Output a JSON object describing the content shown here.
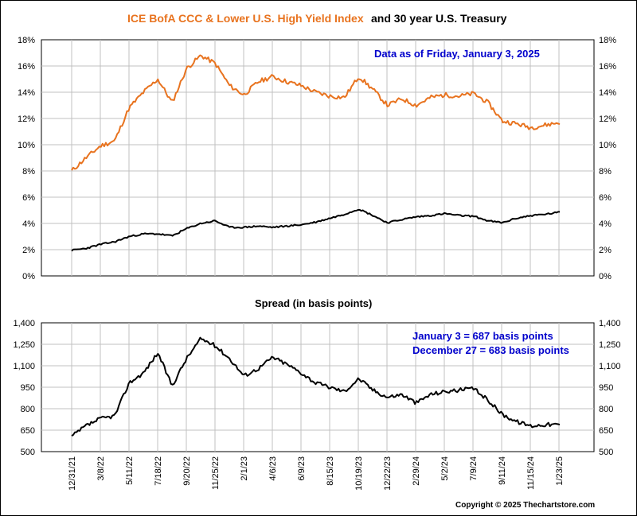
{
  "title": {
    "part1": "ICE BofA CCC & Lower U.S. High Yield Index",
    "part2": "and 30 year U.S. Treasury"
  },
  "copyright": "Copyright © 2025 Thechartstore.com",
  "colors": {
    "high_yield": "#e8731f",
    "treasury": "#000000",
    "spread": "#000000",
    "annotation": "#0000cc",
    "grid": "#c0c0c0"
  },
  "chart_data": [
    {
      "type": "line",
      "title": "",
      "annotation": "Data as of Friday, January 3, 2025",
      "ylabel": "",
      "ylim": [
        0,
        18
      ],
      "yticks": [
        "0%",
        "2%",
        "4%",
        "6%",
        "8%",
        "10%",
        "12%",
        "14%",
        "16%",
        "18%"
      ],
      "grid": true,
      "x": [
        "12/31/21",
        "2/1/22",
        "3/8/22",
        "4/5/22",
        "5/11/22",
        "6/15/22",
        "7/18/22",
        "8/15/22",
        "9/20/22",
        "10/20/22",
        "11/25/22",
        "12/29/22",
        "2/1/23",
        "3/6/23",
        "4/6/23",
        "5/9/23",
        "6/9/23",
        "7/13/23",
        "8/15/23",
        "9/15/23",
        "10/19/23",
        "11/20/23",
        "12/22/23",
        "1/26/24",
        "2/29/24",
        "4/1/24",
        "5/2/24",
        "6/5/24",
        "7/9/24",
        "8/7/24",
        "9/11/24",
        "10/14/24",
        "11/15/24",
        "12/18/24",
        "1/3/25"
      ],
      "series": [
        {
          "name": "",
          "color": "#e8731f",
          "values": [
            8.0,
            9.0,
            9.9,
            10.3,
            12.8,
            14.0,
            15.0,
            13.2,
            15.8,
            16.8,
            16.2,
            14.5,
            13.8,
            14.8,
            15.2,
            14.8,
            14.5,
            14.0,
            13.7,
            13.6,
            15.2,
            14.2,
            13.0,
            13.5,
            13.0,
            13.6,
            13.8,
            13.7,
            13.9,
            13.2,
            11.8,
            11.6,
            11.3,
            11.5,
            11.7
          ]
        },
        {
          "name": "",
          "color": "#000000",
          "values": [
            1.95,
            2.1,
            2.4,
            2.6,
            3.0,
            3.2,
            3.2,
            3.05,
            3.6,
            4.0,
            4.2,
            3.7,
            3.7,
            3.8,
            3.7,
            3.8,
            3.9,
            4.1,
            4.4,
            4.7,
            5.1,
            4.6,
            4.05,
            4.3,
            4.5,
            4.6,
            4.75,
            4.6,
            4.55,
            4.2,
            4.05,
            4.4,
            4.6,
            4.7,
            4.85
          ]
        }
      ]
    },
    {
      "type": "line",
      "title": "Spread (in basis points)",
      "annotations": [
        "January 3 = 687 basis points",
        "December 27 = 683 basis points"
      ],
      "ylabel": "",
      "ylim": [
        500,
        1400
      ],
      "yticks": [
        "500",
        "650",
        "800",
        "950",
        "1,100",
        "1,250",
        "1,400"
      ],
      "grid": true,
      "x": [
        "12/31/21",
        "2/1/22",
        "3/8/22",
        "4/5/22",
        "5/11/22",
        "6/15/22",
        "7/18/22",
        "8/15/22",
        "9/20/22",
        "10/20/22",
        "11/25/22",
        "12/29/22",
        "2/1/23",
        "3/6/23",
        "4/6/23",
        "5/9/23",
        "6/9/23",
        "7/13/23",
        "8/15/23",
        "9/15/23",
        "10/19/23",
        "11/20/23",
        "12/22/23",
        "1/26/24",
        "2/29/24",
        "4/1/24",
        "5/2/24",
        "6/5/24",
        "7/9/24",
        "8/7/24",
        "9/11/24",
        "10/14/24",
        "11/15/24",
        "12/18/24",
        "1/3/25"
      ],
      "series": [
        {
          "name": "",
          "color": "#000000",
          "values": [
            605,
            680,
            730,
            750,
            980,
            1050,
            1190,
            960,
            1150,
            1290,
            1240,
            1150,
            1030,
            1080,
            1160,
            1110,
            1050,
            980,
            950,
            920,
            1010,
            930,
            880,
            900,
            840,
            900,
            920,
            930,
            940,
            860,
            760,
            710,
            680,
            690,
            687
          ]
        }
      ],
      "xticks": [
        "12/31/21",
        "3/8/22",
        "5/11/22",
        "7/18/22",
        "9/20/22",
        "11/25/22",
        "2/1/23",
        "4/6/23",
        "6/9/23",
        "8/15/23",
        "10/19/23",
        "12/22/23",
        "2/29/24",
        "5/2/24",
        "7/9/24",
        "9/11/24",
        "11/15/24",
        "1/23/25"
      ]
    }
  ]
}
